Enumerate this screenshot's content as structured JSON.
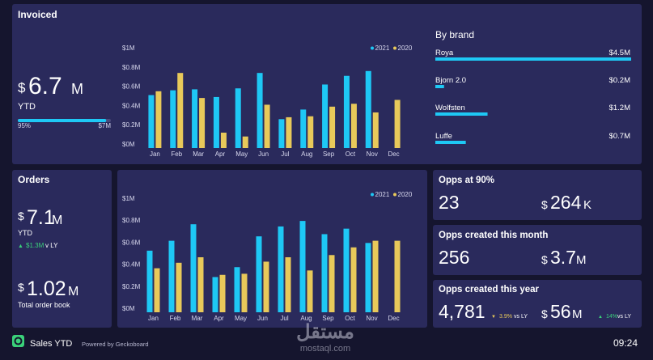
{
  "chart_data": [
    {
      "type": "bar",
      "categories": [
        "Jan",
        "Feb",
        "Mar",
        "Apr",
        "May",
        "Jun",
        "Jul",
        "Aug",
        "Sep",
        "Oct",
        "Nov",
        "Dec"
      ],
      "series": [
        {
          "name": "2021",
          "color": "#1ec8f5",
          "values": [
            0.55,
            0.6,
            0.61,
            0.53,
            0.62,
            0.78,
            0.3,
            0.4,
            0.66,
            0.75,
            0.8,
            null
          ]
        },
        {
          "name": "2020",
          "color": "#e8c95a",
          "values": [
            0.59,
            0.78,
            0.52,
            0.16,
            0.12,
            0.45,
            0.32,
            0.33,
            0.43,
            0.46,
            0.37,
            0.5
          ]
        }
      ],
      "ylim": [
        0,
        1
      ],
      "yticks": [
        {
          "value": 0,
          "label": "$0M"
        },
        {
          "value": 0.2,
          "label": "$0.2M"
        },
        {
          "value": 0.4,
          "label": "$0.4M"
        },
        {
          "value": 0.6,
          "label": "$0.6M"
        },
        {
          "value": 0.8,
          "label": "$0.8M"
        },
        {
          "value": 1,
          "label": "$1M"
        }
      ]
    },
    {
      "type": "bar",
      "categories": [
        "Jan",
        "Feb",
        "Mar",
        "Apr",
        "May",
        "Jun",
        "Jul",
        "Aug",
        "Sep",
        "Oct",
        "Nov",
        "Dec"
      ],
      "series": [
        {
          "name": "2021",
          "color": "#1ec8f5",
          "values": [
            0.56,
            0.65,
            0.8,
            0.32,
            0.41,
            0.69,
            0.78,
            0.83,
            0.71,
            0.76,
            0.63,
            null
          ]
        },
        {
          "name": "2020",
          "color": "#e8c95a",
          "values": [
            0.4,
            0.45,
            0.5,
            0.34,
            0.35,
            0.46,
            0.5,
            0.38,
            0.52,
            0.59,
            0.65,
            0.65
          ]
        }
      ],
      "ylim": [
        0,
        1
      ],
      "yticks": [
        {
          "value": 0,
          "label": "$0M"
        },
        {
          "value": 0.2,
          "label": "$0.2M"
        },
        {
          "value": 0.4,
          "label": "$0.4M"
        },
        {
          "value": 0.6,
          "label": "$0.6M"
        },
        {
          "value": 0.8,
          "label": "$0.8M"
        },
        {
          "value": 1,
          "label": "$1M"
        }
      ]
    },
    {
      "type": "hbar",
      "title": "By brand",
      "categories": [
        "Roya",
        "Bjorn 2.0",
        "Wolfsten",
        "Luffe"
      ],
      "values": [
        4.5,
        0.2,
        1.2,
        0.7
      ],
      "value_labels": [
        "$4.5M",
        "$0.2M",
        "$1.2M",
        "$0.7M"
      ],
      "color": "#1ec8f5"
    }
  ],
  "invoiced": {
    "title": "Invoiced",
    "prefix": "$",
    "number": "6.7",
    "suffix": "M",
    "caption": "YTD",
    "progress": {
      "value": 95,
      "label": "95%",
      "target_label": "$7M"
    }
  },
  "orders": {
    "title": "Orders",
    "prefix": "$",
    "number": "7.1",
    "suffix": "M",
    "caption": "YTD",
    "change": "$1.3M",
    "change_suffix": "v LY",
    "book_prefix": "$",
    "book_number": "1.02",
    "book_suffix": "M",
    "book_caption": "Total order book"
  },
  "cards": [
    {
      "title": "Opps at 90%",
      "count": "23",
      "prefix": "$",
      "number": "264",
      "suffix": "K"
    },
    {
      "title": "Opps created this month",
      "count": "256",
      "prefix": "$",
      "number": "3.7",
      "suffix": "M"
    },
    {
      "title": "Opps created this year",
      "count": "4,781",
      "count_change": "3.9%",
      "count_change_suffix": "vs LY",
      "prefix": "$",
      "number": "56",
      "suffix": "M",
      "change": "14%",
      "change_suffix": "vs LY"
    }
  ],
  "footer": {
    "title": "Sales YTD",
    "powered": "Powered by Geckoboard",
    "time": "09:24"
  },
  "watermark": {
    "arabic": "مستقل",
    "site": "mostaql.com"
  }
}
